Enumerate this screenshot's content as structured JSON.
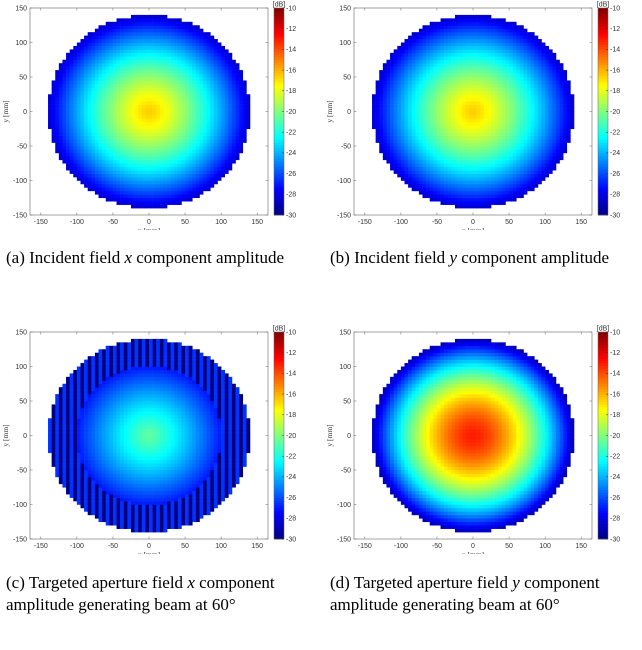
{
  "chart_data": [
    {
      "type": "heatmap",
      "panel": "a",
      "caption": "(a) Incident field x component amplitude",
      "xlabel": "x [mm]",
      "ylabel": "y [mm]",
      "colorbar_label": "[dB]",
      "xlim": [
        -165,
        165
      ],
      "ylim": [
        -150,
        150
      ],
      "x_ticks": [
        -150,
        -100,
        -50,
        0,
        50,
        100,
        150
      ],
      "y_ticks": [
        -150,
        -100,
        -50,
        0,
        50,
        100,
        150
      ],
      "clim": [
        -30,
        -10
      ],
      "colorbar_ticks": [
        -10,
        -12,
        -14,
        -16,
        -18,
        -20,
        -22,
        -24,
        -26,
        -28,
        -30
      ],
      "aperture_radius_mm": 140,
      "center_db": -16.5,
      "edge_db": -28.5,
      "profile_exponent": 1.3,
      "edge_stripes": false
    },
    {
      "type": "heatmap",
      "panel": "b",
      "caption": "(b) Incident field y component amplitude",
      "xlabel": "x [mm]",
      "ylabel": "y [mm]",
      "colorbar_label": "[dB]",
      "xlim": [
        -165,
        165
      ],
      "ylim": [
        -150,
        150
      ],
      "x_ticks": [
        -150,
        -100,
        -50,
        0,
        50,
        100,
        150
      ],
      "y_ticks": [
        -150,
        -100,
        -50,
        0,
        50,
        100,
        150
      ],
      "clim": [
        -30,
        -10
      ],
      "colorbar_ticks": [
        -10,
        -12,
        -14,
        -16,
        -18,
        -20,
        -22,
        -24,
        -26,
        -28,
        -30
      ],
      "aperture_radius_mm": 140,
      "center_db": -16.5,
      "edge_db": -28.5,
      "profile_exponent": 1.3,
      "edge_stripes": false
    },
    {
      "type": "heatmap",
      "panel": "c",
      "caption": "(c) Targeted aperture field x component amplitude generating beam at 60°",
      "xlabel": "x [mm]",
      "ylabel": "y [mm]",
      "colorbar_label": "[dB]",
      "xlim": [
        -165,
        165
      ],
      "ylim": [
        -150,
        150
      ],
      "x_ticks": [
        -150,
        -100,
        -50,
        0,
        50,
        100,
        150
      ],
      "y_ticks": [
        -150,
        -100,
        -50,
        0,
        50,
        100,
        150
      ],
      "clim": [
        -30,
        -10
      ],
      "colorbar_ticks": [
        -10,
        -12,
        -14,
        -16,
        -18,
        -20,
        -22,
        -24,
        -26,
        -28,
        -30
      ],
      "aperture_radius_mm": 140,
      "center_db": -20.5,
      "edge_db": -30,
      "profile_exponent": 1.1,
      "edge_stripes": true
    },
    {
      "type": "heatmap",
      "panel": "d",
      "caption": "(d) Targeted aperture field y component amplitude generating beam at 60°",
      "xlabel": "x [mm]",
      "ylabel": "y [mm]",
      "colorbar_label": "[dB]",
      "xlim": [
        -165,
        165
      ],
      "ylim": [
        -150,
        150
      ],
      "x_ticks": [
        -150,
        -100,
        -50,
        0,
        50,
        100,
        150
      ],
      "y_ticks": [
        -150,
        -100,
        -50,
        0,
        50,
        100,
        150
      ],
      "clim": [
        -30,
        -10
      ],
      "colorbar_ticks": [
        -10,
        -12,
        -14,
        -16,
        -18,
        -20,
        -22,
        -24,
        -26,
        -28,
        -30
      ],
      "aperture_radius_mm": 140,
      "center_db": -13,
      "edge_db": -29,
      "profile_exponent": 1.6,
      "edge_stripes": false
    }
  ],
  "captions": {
    "a": {
      "prefix": "(a) Incident field ",
      "var": "x",
      "suffix": " component amplitude",
      "deg": ""
    },
    "b": {
      "prefix": "(b) Incident field ",
      "var": "y",
      "suffix": " component amplitude",
      "deg": ""
    },
    "c": {
      "prefix": "(c) Targeted aperture field ",
      "var": "x",
      "suffix": " component amplitude generating beam at ",
      "deg": "60°"
    },
    "d": {
      "prefix": "(d) Targeted aperture field ",
      "var": "y",
      "suffix": " component amplitude generating beam at ",
      "deg": "60°"
    }
  },
  "colors": {
    "colormap": [
      "#00007f",
      "#0000ff",
      "#007fff",
      "#00ffff",
      "#7fff7f",
      "#ffff00",
      "#ff7f00",
      "#ff0000",
      "#7f0000"
    ]
  }
}
